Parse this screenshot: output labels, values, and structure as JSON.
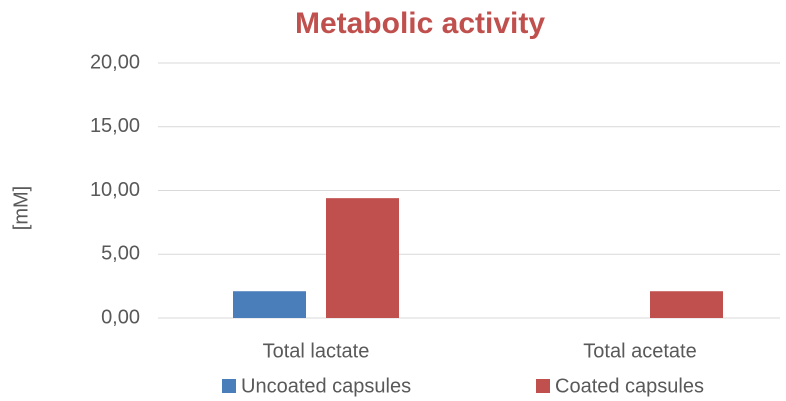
{
  "chart_data": {
    "type": "bar",
    "title": "Metabolic activity",
    "ylabel": "[mM]",
    "categories": [
      "Total lactate",
      "Total acetate"
    ],
    "series": [
      {
        "name": "Uncoated capsules",
        "color": "#4a7ebb",
        "values": [
          2.1,
          0
        ]
      },
      {
        "name": "Coated capsules",
        "color": "#c0504d",
        "values": [
          9.4,
          2.1
        ]
      }
    ],
    "ylim": [
      0,
      20
    ],
    "yticks": [
      {
        "value": 0,
        "label": "0,00"
      },
      {
        "value": 5,
        "label": "5,00"
      },
      {
        "value": 10,
        "label": "10,00"
      },
      {
        "value": 15,
        "label": "15,00"
      },
      {
        "value": 20,
        "label": "20,00"
      }
    ],
    "grid": true,
    "legend": "bottom"
  }
}
